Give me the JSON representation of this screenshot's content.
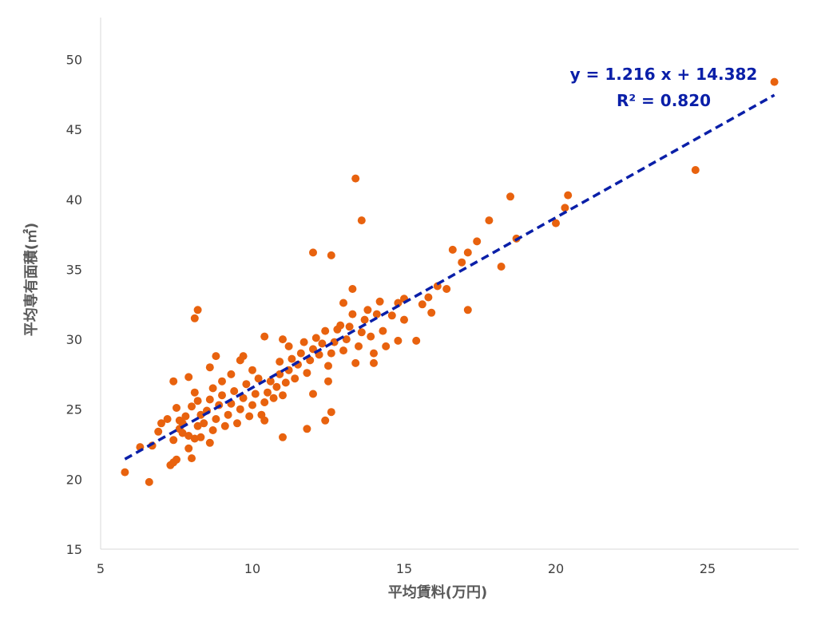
{
  "chart_data": {
    "type": "scatter",
    "xlabel": "平均賃料(万円)",
    "ylabel": "平均専有面積(㎡)",
    "xlim": [
      5,
      28
    ],
    "ylim": [
      15,
      53
    ],
    "xticks": [
      "5",
      "10",
      "15",
      "20",
      "25"
    ],
    "yticks": [
      "15",
      "20",
      "25",
      "30",
      "35",
      "40",
      "45",
      "50"
    ],
    "grid": false,
    "trendline": {
      "slope": 1.216,
      "intercept": 14.382,
      "x_range": [
        5.8,
        27.2
      ],
      "equation": "y = 1.216 x + 14.382",
      "r2_label": "R² = 0.820",
      "color": "#0a1fa8"
    },
    "point_color": "#e8620e",
    "points": [
      [
        5.8,
        20.5
      ],
      [
        6.6,
        19.8
      ],
      [
        6.3,
        22.3
      ],
      [
        6.7,
        22.4
      ],
      [
        6.9,
        23.4
      ],
      [
        7.0,
        24.0
      ],
      [
        7.2,
        24.3
      ],
      [
        7.3,
        21.0
      ],
      [
        7.4,
        21.2
      ],
      [
        7.5,
        21.4
      ],
      [
        7.4,
        22.8
      ],
      [
        7.6,
        23.6
      ],
      [
        7.7,
        24.0
      ],
      [
        7.8,
        24.5
      ],
      [
        7.9,
        23.1
      ],
      [
        7.9,
        22.2
      ],
      [
        8.0,
        21.5
      ],
      [
        8.1,
        22.9
      ],
      [
        8.2,
        23.8
      ],
      [
        8.3,
        24.6
      ],
      [
        8.0,
        25.2
      ],
      [
        8.1,
        26.2
      ],
      [
        8.2,
        25.6
      ],
      [
        7.9,
        27.3
      ],
      [
        7.4,
        27.0
      ],
      [
        7.5,
        25.1
      ],
      [
        7.6,
        24.2
      ],
      [
        7.7,
        23.3
      ],
      [
        8.3,
        23.0
      ],
      [
        8.4,
        24.0
      ],
      [
        8.5,
        24.9
      ],
      [
        8.6,
        25.7
      ],
      [
        8.7,
        26.5
      ],
      [
        8.6,
        22.6
      ],
      [
        8.7,
        23.5
      ],
      [
        8.8,
        24.3
      ],
      [
        8.9,
        25.3
      ],
      [
        9.0,
        26.0
      ],
      [
        9.0,
        27.0
      ],
      [
        8.6,
        28.0
      ],
      [
        8.8,
        28.8
      ],
      [
        9.1,
        23.8
      ],
      [
        9.2,
        24.6
      ],
      [
        9.3,
        25.4
      ],
      [
        9.4,
        26.3
      ],
      [
        9.3,
        27.5
      ],
      [
        9.5,
        24.0
      ],
      [
        9.6,
        25.0
      ],
      [
        9.7,
        25.8
      ],
      [
        9.8,
        26.8
      ],
      [
        9.6,
        28.5
      ],
      [
        9.7,
        28.8
      ],
      [
        9.9,
        24.5
      ],
      [
        10.0,
        25.3
      ],
      [
        10.1,
        26.1
      ],
      [
        10.2,
        27.2
      ],
      [
        10.0,
        27.8
      ],
      [
        10.3,
        24.6
      ],
      [
        10.4,
        25.5
      ],
      [
        10.5,
        26.2
      ],
      [
        10.4,
        24.2
      ],
      [
        10.6,
        27.0
      ],
      [
        10.7,
        25.8
      ],
      [
        10.8,
        26.6
      ],
      [
        10.9,
        27.5
      ],
      [
        10.9,
        28.4
      ],
      [
        11.0,
        26.0
      ],
      [
        11.1,
        26.9
      ],
      [
        11.2,
        27.8
      ],
      [
        11.3,
        28.6
      ],
      [
        11.0,
        30.0
      ],
      [
        11.2,
        29.5
      ],
      [
        11.0,
        23.0
      ],
      [
        10.4,
        30.2
      ],
      [
        11.4,
        27.2
      ],
      [
        11.5,
        28.2
      ],
      [
        11.6,
        29.0
      ],
      [
        11.7,
        29.8
      ],
      [
        11.8,
        27.6
      ],
      [
        11.9,
        28.5
      ],
      [
        12.0,
        29.3
      ],
      [
        12.1,
        30.1
      ],
      [
        12.0,
        26.1
      ],
      [
        11.8,
        23.6
      ],
      [
        12.2,
        28.9
      ],
      [
        12.3,
        29.7
      ],
      [
        12.4,
        30.6
      ],
      [
        12.5,
        28.1
      ],
      [
        12.6,
        29.0
      ],
      [
        12.7,
        29.8
      ],
      [
        12.8,
        30.7
      ],
      [
        12.4,
        24.2
      ],
      [
        12.6,
        24.8
      ],
      [
        12.5,
        27.0
      ],
      [
        12.9,
        31.0
      ],
      [
        13.0,
        29.2
      ],
      [
        13.1,
        30.0
      ],
      [
        13.2,
        30.9
      ],
      [
        13.3,
        31.8
      ],
      [
        13.0,
        32.6
      ],
      [
        13.3,
        33.6
      ],
      [
        13.4,
        28.3
      ],
      [
        13.5,
        29.5
      ],
      [
        13.6,
        30.5
      ],
      [
        13.7,
        31.4
      ],
      [
        13.8,
        32.1
      ],
      [
        13.9,
        30.2
      ],
      [
        14.0,
        29.0
      ],
      [
        14.0,
        28.3
      ],
      [
        14.1,
        31.8
      ],
      [
        14.2,
        32.7
      ],
      [
        14.3,
        30.6
      ],
      [
        14.4,
        29.5
      ],
      [
        14.6,
        31.7
      ],
      [
        14.8,
        32.6
      ],
      [
        14.8,
        29.9
      ],
      [
        15.0,
        31.4
      ],
      [
        15.0,
        32.9
      ],
      [
        15.4,
        29.9
      ],
      [
        15.6,
        32.5
      ],
      [
        15.8,
        33.0
      ],
      [
        15.9,
        31.9
      ],
      [
        16.1,
        33.8
      ],
      [
        16.4,
        33.6
      ],
      [
        16.6,
        36.4
      ],
      [
        16.9,
        35.5
      ],
      [
        17.1,
        36.2
      ],
      [
        17.1,
        32.1
      ],
      [
        17.4,
        37.0
      ],
      [
        17.8,
        38.5
      ],
      [
        18.2,
        35.2
      ],
      [
        18.5,
        40.2
      ],
      [
        18.7,
        37.2
      ],
      [
        20.0,
        38.3
      ],
      [
        20.3,
        39.4
      ],
      [
        20.4,
        40.3
      ],
      [
        12.0,
        36.2
      ],
      [
        12.6,
        36.0
      ],
      [
        13.4,
        41.5
      ],
      [
        13.6,
        38.5
      ],
      [
        8.1,
        31.5
      ],
      [
        8.2,
        32.1
      ],
      [
        24.6,
        42.1
      ],
      [
        27.2,
        48.4
      ]
    ]
  }
}
